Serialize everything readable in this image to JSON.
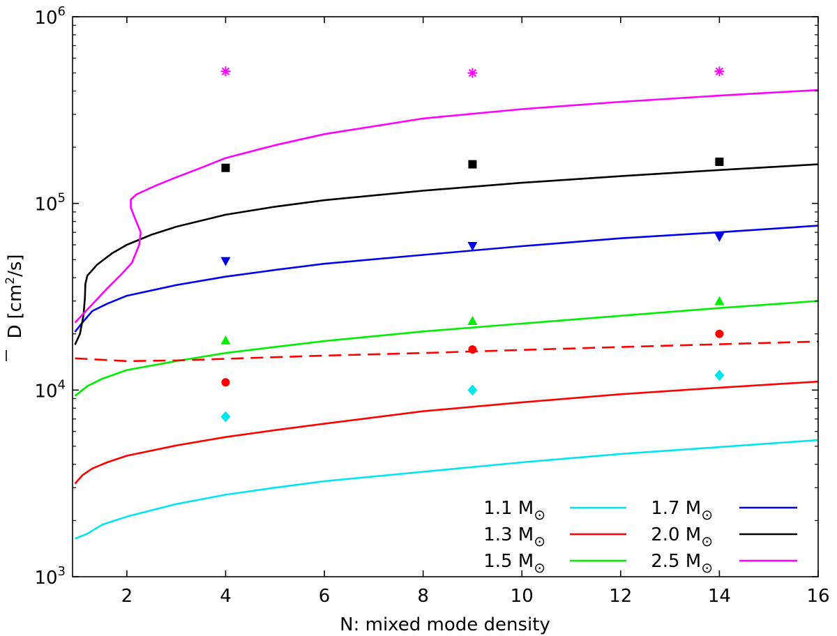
{
  "chart_data": {
    "type": "line",
    "xlabel": "N: mixed mode density",
    "ylabel_prefix": "D",
    "ylabel_bracket_open": "[cm",
    "ylabel_exp": "2",
    "ylabel_suffix": "/s]",
    "xlim": [
      0.9,
      16
    ],
    "ylim": [
      1000,
      1000000
    ],
    "yscale": "log",
    "x_ticks": [
      2,
      4,
      6,
      8,
      10,
      12,
      14,
      16
    ],
    "y_ticks": [
      {
        "value": 1000,
        "base": "10",
        "exp": "3"
      },
      {
        "value": 10000,
        "base": "10",
        "exp": "4"
      },
      {
        "value": 100000,
        "base": "10",
        "exp": "5"
      },
      {
        "value": 1000000,
        "base": "10",
        "exp": "6"
      }
    ],
    "legend_position": "lower-right",
    "series": [
      {
        "name": "1.1 M⊙",
        "color": "#00e5ee",
        "style": "solid",
        "points": [
          [
            0.95,
            1600
          ],
          [
            1.2,
            1700
          ],
          [
            1.5,
            1900
          ],
          [
            2,
            2100
          ],
          [
            3,
            2450
          ],
          [
            4,
            2750
          ],
          [
            5,
            3000
          ],
          [
            6,
            3250
          ],
          [
            8,
            3650
          ],
          [
            10,
            4100
          ],
          [
            12,
            4550
          ],
          [
            14,
            4950
          ],
          [
            16,
            5400
          ]
        ]
      },
      {
        "name": "1.3 M⊙",
        "color": "#ff0000",
        "style": "solid",
        "points": [
          [
            0.95,
            3150
          ],
          [
            1.1,
            3500
          ],
          [
            1.3,
            3800
          ],
          [
            1.6,
            4100
          ],
          [
            2,
            4450
          ],
          [
            3,
            5050
          ],
          [
            4,
            5600
          ],
          [
            5,
            6100
          ],
          [
            6,
            6600
          ],
          [
            8,
            7700
          ],
          [
            10,
            8600
          ],
          [
            12,
            9500
          ],
          [
            14,
            10300
          ],
          [
            16,
            11100
          ]
        ]
      },
      {
        "name": "1.5 M⊙",
        "color": "#00ee00",
        "style": "solid",
        "points": [
          [
            0.95,
            9300
          ],
          [
            1.2,
            10500
          ],
          [
            1.5,
            11500
          ],
          [
            2,
            12800
          ],
          [
            3,
            14300
          ],
          [
            4,
            15800
          ],
          [
            5,
            17000
          ],
          [
            6,
            18300
          ],
          [
            8,
            20600
          ],
          [
            10,
            22700
          ],
          [
            12,
            25000
          ],
          [
            14,
            27500
          ],
          [
            16,
            30000
          ]
        ]
      },
      {
        "name": "1.7 M⊙",
        "color": "#0000ee",
        "style": "solid",
        "points": [
          [
            0.95,
            20500
          ],
          [
            1.1,
            23000
          ],
          [
            1.3,
            26500
          ],
          [
            1.6,
            29000
          ],
          [
            2,
            32000
          ],
          [
            3,
            36500
          ],
          [
            4,
            40500
          ],
          [
            5,
            44000
          ],
          [
            6,
            47500
          ],
          [
            8,
            53000
          ],
          [
            10,
            59000
          ],
          [
            12,
            65000
          ],
          [
            14,
            70000
          ],
          [
            16,
            76000
          ]
        ]
      },
      {
        "name": "2.0 M⊙",
        "color": "#000000",
        "style": "solid",
        "points": [
          [
            0.95,
            17500
          ],
          [
            1.05,
            20000
          ],
          [
            1.12,
            25000
          ],
          [
            1.15,
            31000
          ],
          [
            1.16,
            37000
          ],
          [
            1.2,
            41000
          ],
          [
            1.4,
            47000
          ],
          [
            1.7,
            54000
          ],
          [
            2,
            60000
          ],
          [
            2.5,
            68000
          ],
          [
            3,
            75000
          ],
          [
            4,
            87000
          ],
          [
            5,
            96000
          ],
          [
            6,
            104000
          ],
          [
            8,
            117000
          ],
          [
            10,
            129000
          ],
          [
            12,
            140000
          ],
          [
            14,
            151000
          ],
          [
            16,
            162000
          ]
        ]
      },
      {
        "name": "2.5 M⊙",
        "color": "#ff00ff",
        "style": "solid",
        "points": [
          [
            0.95,
            23000
          ],
          [
            1.2,
            27000
          ],
          [
            1.6,
            35000
          ],
          [
            1.9,
            42000
          ],
          [
            2.1,
            48000
          ],
          [
            2.25,
            60000
          ],
          [
            2.28,
            70000
          ],
          [
            2.15,
            85000
          ],
          [
            2.08,
            95000
          ],
          [
            2.08,
            105000
          ],
          [
            2.2,
            112000
          ],
          [
            2.6,
            125000
          ],
          [
            3,
            138000
          ],
          [
            3.5,
            155000
          ],
          [
            4,
            175000
          ],
          [
            5,
            205000
          ],
          [
            6,
            235000
          ],
          [
            8,
            285000
          ],
          [
            10,
            320000
          ],
          [
            12,
            350000
          ],
          [
            14,
            378000
          ],
          [
            16,
            405000
          ]
        ]
      },
      {
        "name": "",
        "color": "#ff0000",
        "style": "dashed",
        "points": [
          [
            0.95,
            14800
          ],
          [
            2,
            14300
          ],
          [
            3,
            14400
          ],
          [
            4,
            14700
          ],
          [
            6,
            15300
          ],
          [
            8,
            15800
          ],
          [
            10,
            16400
          ],
          [
            12,
            17000
          ],
          [
            14,
            17600
          ],
          [
            16,
            18200
          ]
        ]
      }
    ],
    "markers": [
      {
        "shape": "star",
        "color": "#ff00ff",
        "points": [
          [
            4,
            510000
          ],
          [
            9,
            500000
          ],
          [
            14,
            510000
          ]
        ]
      },
      {
        "shape": "square",
        "color": "#000000",
        "points": [
          [
            4,
            155000
          ],
          [
            9,
            162000
          ],
          [
            14,
            167000
          ]
        ]
      },
      {
        "shape": "triangle-down",
        "color": "#0000ee",
        "points": [
          [
            4,
            49000
          ],
          [
            9,
            59000
          ],
          [
            14,
            66000
          ]
        ]
      },
      {
        "shape": "triangle-up",
        "color": "#00ee00",
        "points": [
          [
            4,
            18500
          ],
          [
            9,
            23500
          ],
          [
            14,
            30000
          ]
        ]
      },
      {
        "shape": "circle",
        "color": "#ff0000",
        "points": [
          [
            4,
            11000
          ],
          [
            9,
            16500
          ],
          [
            14,
            20000
          ]
        ]
      },
      {
        "shape": "diamond",
        "color": "#00e5ee",
        "points": [
          [
            4,
            7200
          ],
          [
            9,
            10000
          ],
          [
            14,
            12000
          ]
        ]
      }
    ],
    "legend": [
      {
        "label": "1.1 M",
        "sun": "⊙",
        "color": "#00e5ee"
      },
      {
        "label": "1.7 M",
        "sun": "⊙",
        "color": "#0000ee"
      },
      {
        "label": "1.3 M",
        "sun": "⊙",
        "color": "#ff0000"
      },
      {
        "label": "2.0 M",
        "sun": "⊙",
        "color": "#000000"
      },
      {
        "label": "1.5 M",
        "sun": "⊙",
        "color": "#00ee00"
      },
      {
        "label": "2.5 M",
        "sun": "⊙",
        "color": "#ff00ff"
      }
    ]
  }
}
